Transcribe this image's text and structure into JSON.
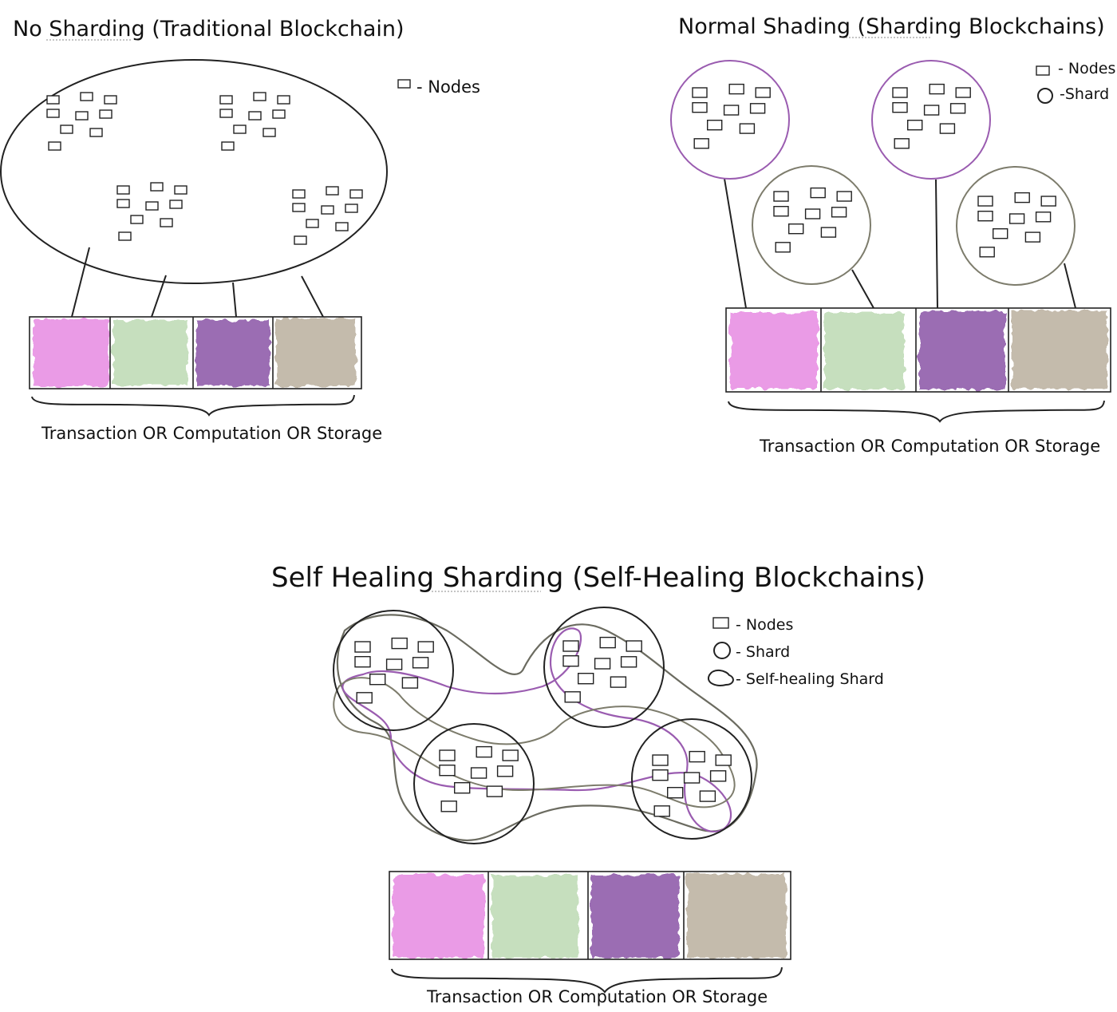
{
  "colors": {
    "pink": "#ea9be6",
    "green": "#c6dfbe",
    "purple": "#9b6db3",
    "taupe": "#c4bbac",
    "shard_purple": "#9a5cb0",
    "shard_gray": "#7d7c6c",
    "healing_gray": "#6b6b60"
  },
  "icons": {
    "node": "rectangle-icon",
    "shard": "circle-icon",
    "self_healing_shard": "blob-icon"
  },
  "panel_no_sharding": {
    "title": "No Sharding (Traditional Blockchain)",
    "legend_nodes": "- Nodes",
    "caption": "Transaction OR Computation OR Storage"
  },
  "panel_normal_sharding": {
    "title": "Normal Shading (Sharding Blockchains)",
    "legend_nodes": "- Nodes",
    "legend_shard": "-Shard",
    "caption": "Transaction OR Computation OR Storage"
  },
  "panel_self_healing": {
    "title": "Self Healing Sharding (Self-Healing Blockchains)",
    "legend_nodes": "- Nodes",
    "legend_shard": "- Shard",
    "legend_self_healing": "- Self-healing Shard",
    "caption": "Transaction OR Computation OR Storage"
  }
}
